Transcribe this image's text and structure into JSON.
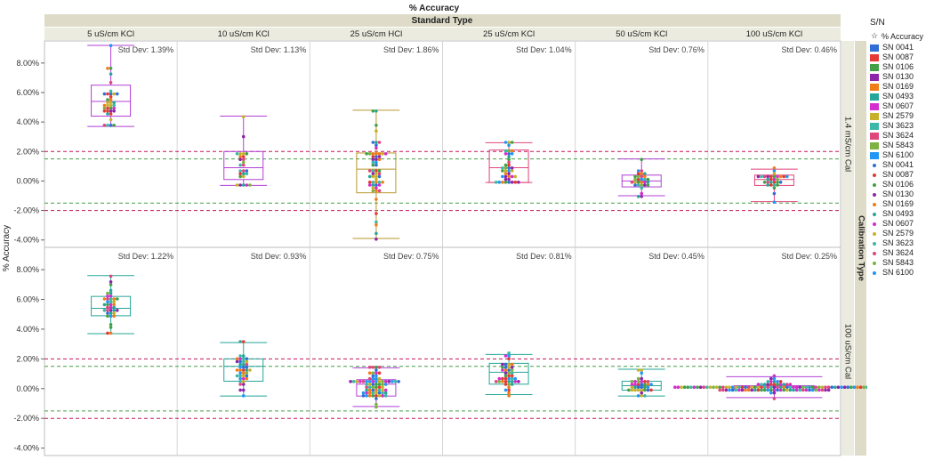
{
  "chart_data": {
    "type": "box_with_points",
    "title": "% Accuracy",
    "column_group_title": "Standard Type",
    "row_group_title": "Calibration Type",
    "ylabel": "% Accuracy",
    "ylim": [
      -4.5,
      9.5
    ],
    "yticks": [
      -4,
      -2,
      0,
      2,
      4,
      6,
      8
    ],
    "ytick_labels": [
      "-4.00%",
      "-2.00%",
      "0.00%",
      "2.00%",
      "4.00%",
      "6.00%",
      "8.00%"
    ],
    "columns": [
      "5 uS/cm KCl",
      "10 uS/cm KCl",
      "25 uS/cm HCl",
      "25 uS/cm KCl",
      "50 uS/cm KCl",
      "100 uS/cm KCl"
    ],
    "rows": [
      "1.4 mS/cm Cal",
      "100 uS/cm Cal"
    ],
    "reference_lines": [
      {
        "value": 2.0,
        "color": "#c2185b"
      },
      {
        "value": 1.5,
        "color": "#43a047"
      },
      {
        "value": -1.5,
        "color": "#43a047"
      },
      {
        "value": -2.0,
        "color": "#c2185b"
      }
    ],
    "panels": [
      [
        {
          "std_label": "Std Dev: 1.39%",
          "min": 3.7,
          "q1": 4.4,
          "median": 5.4,
          "q3": 6.5,
          "max": 9.2,
          "color": "#b23fd6",
          "n": 36
        },
        {
          "std_label": "Std Dev: 1.13%",
          "min": -0.3,
          "q1": 0.1,
          "median": 0.9,
          "q3": 2.0,
          "max": 4.4,
          "color": "#b23fd6",
          "n": 26
        },
        {
          "std_label": "Std Dev: 1.86%",
          "min": -3.9,
          "q1": -0.8,
          "median": 0.8,
          "q3": 1.9,
          "max": 4.8,
          "color": "#b8962a",
          "n": 58
        },
        {
          "std_label": "Std Dev: 1.04%",
          "min": -0.1,
          "q1": -0.1,
          "median": 0.9,
          "q3": 2.1,
          "max": 2.6,
          "color": "#e0457b",
          "n": 40
        },
        {
          "std_label": "Std Dev: 0.76%",
          "min": -1.0,
          "q1": -0.4,
          "median": 0.0,
          "q3": 0.4,
          "max": 1.5,
          "color": "#b23fd6",
          "n": 30
        },
        {
          "std_label": "Std Dev: 0.46%",
          "min": -1.4,
          "q1": -0.3,
          "median": 0.1,
          "q3": 0.4,
          "max": 0.8,
          "color": "#e0457b",
          "n": 30
        }
      ],
      [
        {
          "std_label": "Std Dev: 1.22%",
          "min": 3.7,
          "q1": 4.9,
          "median": 5.4,
          "q3": 6.2,
          "max": 7.6,
          "color": "#26a69a",
          "n": 38
        },
        {
          "std_label": "Std Dev: 0.93%",
          "min": -0.5,
          "q1": 0.5,
          "median": 1.5,
          "q3": 2.0,
          "max": 3.1,
          "color": "#26a69a",
          "n": 40
        },
        {
          "std_label": "Std Dev: 0.75%",
          "min": -1.2,
          "q1": -0.5,
          "median": 0.3,
          "q3": 0.6,
          "max": 1.4,
          "color": "#b23fd6",
          "n": 70
        },
        {
          "std_label": "Std Dev: 0.81%",
          "min": -0.4,
          "q1": 0.3,
          "median": 1.1,
          "q3": 1.7,
          "max": 2.3,
          "color": "#26a69a",
          "n": 44
        },
        {
          "std_label": "Std Dev: 0.45%",
          "min": -0.5,
          "q1": -0.1,
          "median": 0.2,
          "q3": 0.5,
          "max": 1.3,
          "color": "#26a69a",
          "n": 36
        },
        {
          "std_label": "Std Dev: 0.25%",
          "min": -0.6,
          "q1": -0.1,
          "median": 0.1,
          "q3": 0.2,
          "max": 0.8,
          "color": "#b23fd6",
          "n": 120
        }
      ]
    ]
  },
  "legend": {
    "title": "S/N",
    "subtitle": "% Accuracy",
    "items": [
      {
        "label": "SN 0041",
        "color": "#2f6fd6"
      },
      {
        "label": "SN 0087",
        "color": "#e53935"
      },
      {
        "label": "SN 0106",
        "color": "#43a047"
      },
      {
        "label": "SN 0130",
        "color": "#8e24aa"
      },
      {
        "label": "SN 0169",
        "color": "#ef7d1a"
      },
      {
        "label": "SN 0493",
        "color": "#26a69a"
      },
      {
        "label": "SN 0607",
        "color": "#d42ccf"
      },
      {
        "label": "SN 2579",
        "color": "#c9b02a"
      },
      {
        "label": "SN 3623",
        "color": "#3bb8a8"
      },
      {
        "label": "SN 3624",
        "color": "#e0457b"
      },
      {
        "label": "SN 5843",
        "color": "#7cb342"
      },
      {
        "label": "SN 6100",
        "color": "#2196f3"
      }
    ]
  }
}
